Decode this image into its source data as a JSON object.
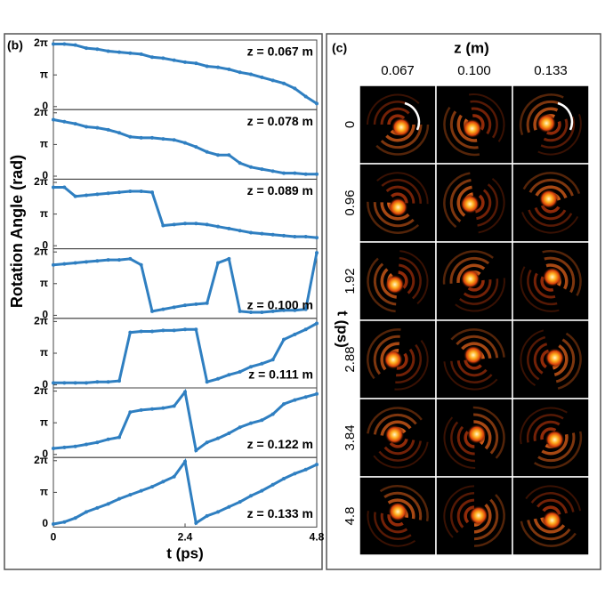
{
  "panel_b": {
    "label": "(b)",
    "ylabel": "Rotation Angle (rad)",
    "xlabel": "t (ps)"
  },
  "panel_c": {
    "label": "(c)",
    "column_title": "z (m)",
    "columns": [
      "0.067",
      "0.100",
      "0.133"
    ],
    "row_title": "t (ps)",
    "rows": [
      "0",
      "0.96",
      "1.92",
      "2.88",
      "3.84",
      "4.8"
    ]
  },
  "chart_data": [
    {
      "type": "line",
      "annotation": "z = 0.067 m",
      "color": "#2f7fc1",
      "x": [
        0,
        0.2,
        0.4,
        0.6,
        0.8,
        1.0,
        1.2,
        1.4,
        1.6,
        1.8,
        2.0,
        2.2,
        2.4,
        2.6,
        2.8,
        3.0,
        3.2,
        3.4,
        3.6,
        3.8,
        4.0,
        4.2,
        4.4,
        4.6,
        4.8
      ],
      "values": [
        6.2,
        6.2,
        6.1,
        5.8,
        5.7,
        5.5,
        5.4,
        5.3,
        5.2,
        4.9,
        4.8,
        4.6,
        4.4,
        4.3,
        4.0,
        3.9,
        3.7,
        3.4,
        3.2,
        2.9,
        2.6,
        2.3,
        1.8,
        1.0,
        0.3
      ],
      "xlim": [
        0,
        4.8
      ],
      "ylim": [
        -0.3,
        6.6
      ],
      "yticks": [
        0,
        {
          "value": 3.14159,
          "label": "π"
        },
        {
          "value": 6.28319,
          "label": "2π"
        }
      ]
    },
    {
      "type": "line",
      "annotation": "z = 0.078 m",
      "color": "#2f7fc1",
      "x": [
        0,
        0.2,
        0.4,
        0.6,
        0.8,
        1.0,
        1.2,
        1.4,
        1.6,
        1.8,
        2.0,
        2.2,
        2.4,
        2.6,
        2.8,
        3.0,
        3.2,
        3.4,
        3.6,
        3.8,
        4.0,
        4.2,
        4.4,
        4.6,
        4.8
      ],
      "values": [
        5.6,
        5.4,
        5.2,
        4.9,
        4.8,
        4.6,
        4.3,
        3.9,
        3.8,
        3.8,
        3.7,
        3.6,
        3.3,
        2.9,
        2.4,
        2.1,
        2.1,
        1.3,
        0.9,
        0.7,
        0.5,
        0.3,
        0.3,
        0.2,
        0.2
      ],
      "xlim": [
        0,
        4.8
      ],
      "ylim": [
        -0.3,
        6.6
      ],
      "yticks": [
        0,
        {
          "value": 3.14159,
          "label": "π"
        },
        {
          "value": 6.28319,
          "label": "2π"
        }
      ]
    },
    {
      "type": "line",
      "annotation": "z = 0.089 m",
      "color": "#2f7fc1",
      "x": [
        0,
        0.2,
        0.4,
        0.6,
        0.8,
        1.0,
        1.2,
        1.4,
        1.6,
        1.8,
        2.0,
        2.2,
        2.4,
        2.6,
        2.8,
        3.0,
        3.2,
        3.4,
        3.6,
        3.8,
        4.0,
        4.2,
        4.4,
        4.6,
        4.8
      ],
      "values": [
        5.8,
        5.8,
        4.9,
        5.0,
        5.1,
        5.2,
        5.3,
        5.4,
        5.4,
        5.3,
        2.0,
        2.1,
        2.2,
        2.2,
        2.1,
        1.9,
        1.7,
        1.5,
        1.3,
        1.2,
        1.1,
        1.0,
        0.9,
        0.9,
        0.8
      ],
      "xlim": [
        0,
        4.8
      ],
      "ylim": [
        -0.3,
        6.6
      ],
      "yticks": [
        0,
        {
          "value": 3.14159,
          "label": "π"
        },
        {
          "value": 6.28319,
          "label": "2π"
        }
      ]
    },
    {
      "type": "line",
      "annotation": "z = 0.100 m",
      "color": "#2f7fc1",
      "x": [
        0,
        0.2,
        0.4,
        0.6,
        0.8,
        1.0,
        1.2,
        1.4,
        1.6,
        1.8,
        2.0,
        2.2,
        2.4,
        2.6,
        2.8,
        3.0,
        3.2,
        3.4,
        3.6,
        3.8,
        4.0,
        4.2,
        4.4,
        4.6,
        4.8
      ],
      "values": [
        5.0,
        5.1,
        5.2,
        5.3,
        5.4,
        5.5,
        5.5,
        5.6,
        5.0,
        0.4,
        0.6,
        0.8,
        1.0,
        1.1,
        1.2,
        5.2,
        5.6,
        0.4,
        0.3,
        0.3,
        0.4,
        0.5,
        0.5,
        0.6,
        6.2
      ],
      "xlim": [
        0,
        4.8
      ],
      "ylim": [
        -0.3,
        6.6
      ],
      "yticks": [
        0,
        {
          "value": 3.14159,
          "label": "π"
        },
        {
          "value": 6.28319,
          "label": "2π"
        }
      ]
    },
    {
      "type": "line",
      "annotation": "z = 0.111 m",
      "color": "#2f7fc1",
      "x": [
        0,
        0.2,
        0.4,
        0.6,
        0.8,
        1.0,
        1.2,
        1.4,
        1.6,
        1.8,
        2.0,
        2.2,
        2.4,
        2.6,
        2.8,
        3.0,
        3.2,
        3.4,
        3.6,
        3.8,
        4.0,
        4.2,
        4.4,
        4.6,
        4.8
      ],
      "values": [
        0.2,
        0.2,
        0.2,
        0.2,
        0.3,
        0.3,
        0.4,
        5.2,
        5.3,
        5.3,
        5.4,
        5.4,
        5.5,
        5.5,
        0.3,
        0.6,
        1.0,
        1.3,
        1.8,
        2.1,
        2.5,
        4.5,
        5.0,
        5.5,
        6.1
      ],
      "xlim": [
        0,
        4.8
      ],
      "ylim": [
        -0.3,
        6.6
      ],
      "yticks": [
        0,
        {
          "value": 3.14159,
          "label": "π"
        },
        {
          "value": 6.28319,
          "label": "2π"
        }
      ]
    },
    {
      "type": "line",
      "annotation": "z = 0.122 m",
      "color": "#2f7fc1",
      "x": [
        0,
        0.2,
        0.4,
        0.6,
        0.8,
        1.0,
        1.2,
        1.4,
        1.6,
        1.8,
        2.0,
        2.2,
        2.4,
        2.6,
        2.8,
        3.0,
        3.2,
        3.4,
        3.6,
        3.8,
        4.0,
        4.2,
        4.4,
        4.6,
        4.8
      ],
      "values": [
        0.6,
        0.7,
        0.8,
        1.0,
        1.2,
        1.5,
        1.7,
        4.2,
        4.4,
        4.5,
        4.6,
        4.8,
        6.2,
        0.4,
        1.2,
        1.6,
        2.1,
        2.7,
        3.1,
        3.4,
        4.0,
        5.0,
        5.4,
        5.7,
        6.0
      ],
      "xlim": [
        0,
        4.8
      ],
      "ylim": [
        -0.3,
        6.6
      ],
      "yticks": [
        0,
        {
          "value": 3.14159,
          "label": "π"
        },
        {
          "value": 6.28319,
          "label": "2π"
        }
      ]
    },
    {
      "type": "line",
      "annotation": "z = 0.133 m",
      "color": "#2f7fc1",
      "x": [
        0,
        0.2,
        0.4,
        0.6,
        0.8,
        1.0,
        1.2,
        1.4,
        1.6,
        1.8,
        2.0,
        2.2,
        2.4,
        2.6,
        2.8,
        3.0,
        3.2,
        3.4,
        3.6,
        3.8,
        4.0,
        4.2,
        4.4,
        4.6,
        4.8
      ],
      "values": [
        0.0,
        0.2,
        0.6,
        1.2,
        1.6,
        2.0,
        2.5,
        2.9,
        3.3,
        3.7,
        4.2,
        4.7,
        6.2,
        0.1,
        0.8,
        1.2,
        1.7,
        2.2,
        2.8,
        3.3,
        3.9,
        4.5,
        5.0,
        5.4,
        5.9
      ],
      "xlim": [
        0,
        4.8
      ],
      "ylim": [
        -0.3,
        6.6
      ],
      "yticks": [
        0,
        {
          "value": 3.14159,
          "label": "π"
        },
        {
          "value": 6.28319,
          "label": "2π"
        }
      ],
      "xticks": [
        0,
        2.4,
        4.8
      ]
    }
  ]
}
